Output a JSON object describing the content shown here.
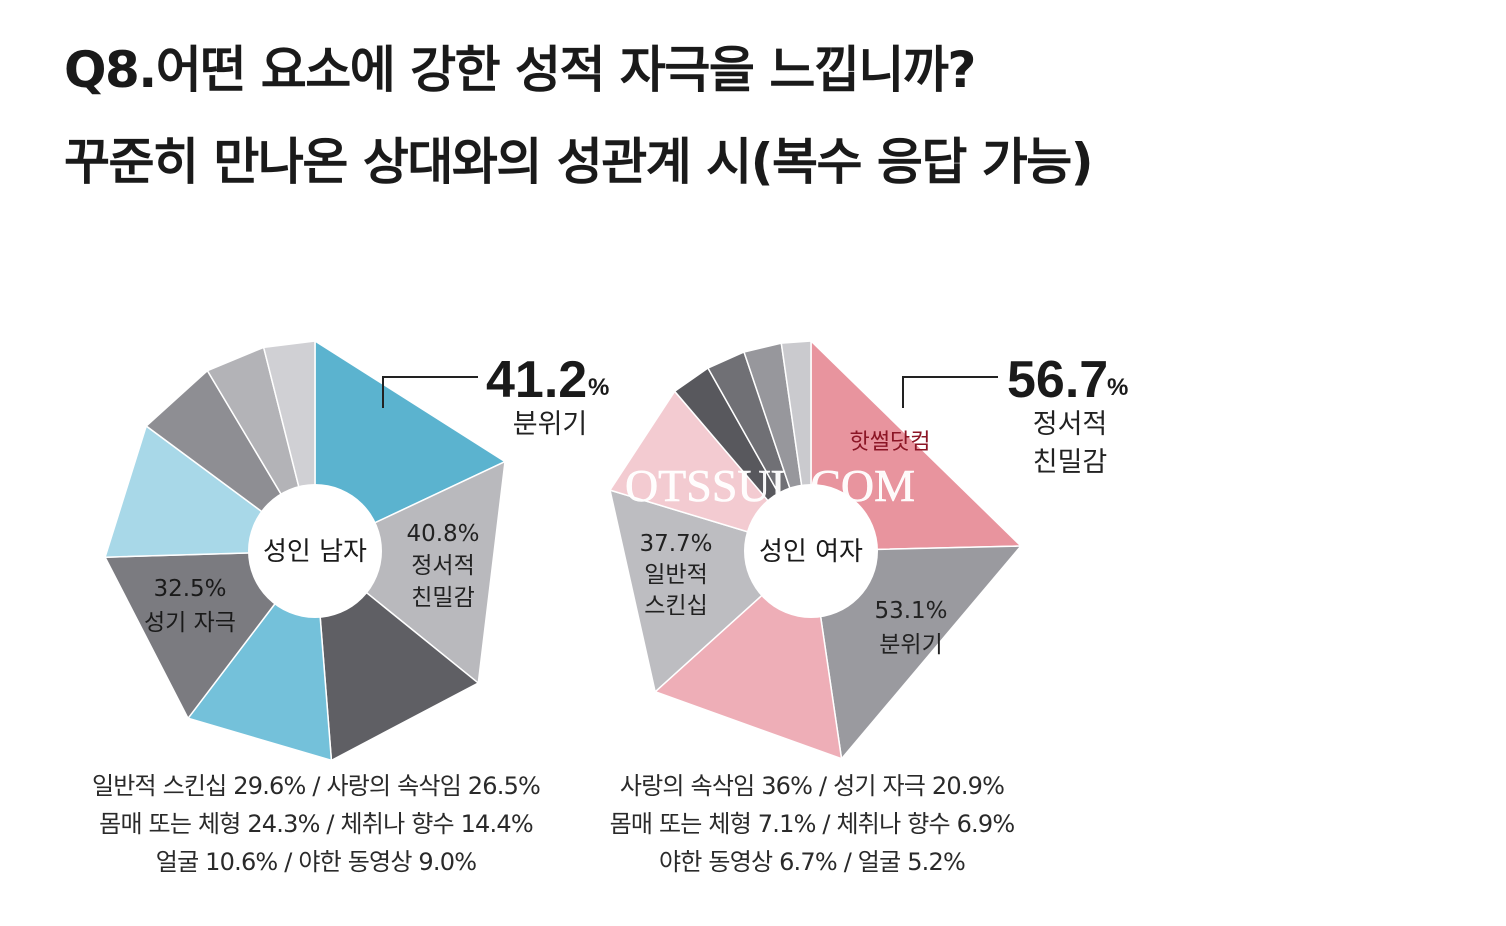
{
  "title": {
    "line1": "Q8.어떤 요소에 강한 성적 자극을 느낍니까?",
    "line2": "꾸준히 만나온 상대와의 성관계 시(복수 응답 가능)"
  },
  "watermark": {
    "korean": "핫썰닷컴",
    "latin": "OTSSUL.COM"
  },
  "chart_data": [
    {
      "type": "pie",
      "center_label": "성인 남자",
      "unit": "%",
      "slices": [
        {
          "label": "분위기",
          "value": 41.2,
          "color": "#5bb3cf"
        },
        {
          "label": "정서적 친밀감",
          "value": 40.8,
          "color": "#b9b9bd"
        },
        {
          "label": "",
          "value": 29.6,
          "color": "#5f5f64"
        },
        {
          "label": "",
          "value": 26.5,
          "color": "#74c1da"
        },
        {
          "label": "성기 자극",
          "value": 32.5,
          "color": "#7b7b80"
        },
        {
          "label": "",
          "value": 24.3,
          "color": "#a8d8e8"
        },
        {
          "label": "",
          "value": 14.4,
          "color": "#8e8e93"
        },
        {
          "label": "",
          "value": 10.6,
          "color": "#b3b3b7"
        },
        {
          "label": "",
          "value": 9.0,
          "color": "#d0d0d4"
        }
      ],
      "callouts": {
        "top_value": "41.2",
        "top_unit": "%",
        "top_label": "분위기",
        "second_value": "40.8%",
        "second_label_1": "정서적",
        "second_label_2": "친밀감",
        "third_value": "32.5%",
        "third_label": "성기 자극"
      },
      "footnotes": [
        "일반적 스킨십 29.6% / 사랑의 속삭임 26.5%",
        "몸매 또는 체형 24.3% / 체취나 향수 14.4%",
        "얼굴 10.6% / 야한 동영상 9.0%"
      ]
    },
    {
      "type": "pie",
      "center_label": "성인 여자",
      "unit": "%",
      "slices": [
        {
          "label": "정서적 친밀감",
          "value": 56.7,
          "color": "#e8949e"
        },
        {
          "label": "분위기",
          "value": 53.1,
          "color": "#9a9a9f"
        },
        {
          "label": "",
          "value": 36,
          "color": "#eeaeb7"
        },
        {
          "label": "일반적 스킨십",
          "value": 37.7,
          "color": "#bdbdc1"
        },
        {
          "label": "",
          "value": 20.9,
          "color": "#f3cbd1"
        },
        {
          "label": "",
          "value": 7.1,
          "color": "#58585d"
        },
        {
          "label": "",
          "value": 6.9,
          "color": "#707075"
        },
        {
          "label": "",
          "value": 6.7,
          "color": "#97979c"
        },
        {
          "label": "",
          "value": 5.2,
          "color": "#cacace"
        }
      ],
      "callouts": {
        "top_value": "56.7",
        "top_unit": "%",
        "top_label_1": "정서적",
        "top_label_2": "친밀감",
        "second_value": "53.1%",
        "second_label": "분위기",
        "third_value": "37.7%",
        "third_label_1": "일반적",
        "third_label_2": "스킨십"
      },
      "footnotes": [
        "사랑의 속삭임 36% / 성기 자극 20.9%",
        "몸매 또는 체형 7.1% / 체취나 향수 6.9%",
        "야한 동영상 6.7% / 얼굴 5.2%"
      ]
    }
  ]
}
